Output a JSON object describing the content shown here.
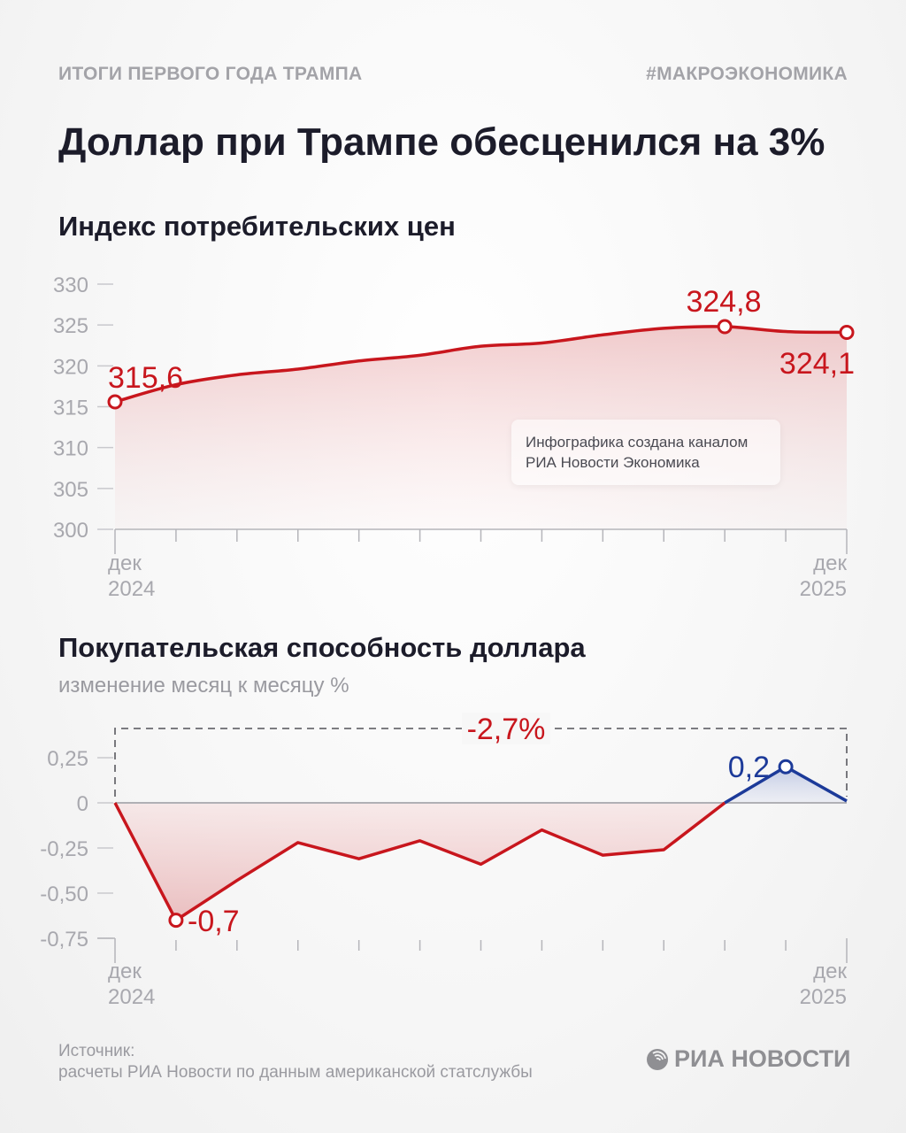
{
  "header": {
    "kicker_left": "ИТОГИ ПЕРВОГО ГОДА ТРАМПА",
    "kicker_right": "#МАКРОЭКОНОМИКА",
    "headline": "Доллар при Трампе обесценился на 3%"
  },
  "note": {
    "line1": "Инфографика создана каналом",
    "line2": "РИА Новости Экономика"
  },
  "footer": {
    "source_label": "Источник:",
    "source_text": "расчеты РИА Новости по данным американской статслужбы",
    "logo": "РИА НОВОСТИ"
  },
  "colors": {
    "red": "#c8161d",
    "blue": "#1c3a99",
    "axis": "#b5b5ba"
  },
  "chart_data": [
    {
      "type": "area",
      "title": "Индекс потребительских цен",
      "ylim": [
        300,
        330
      ],
      "yticks": [
        "300",
        "305",
        "310",
        "315",
        "320",
        "325",
        "330"
      ],
      "ytick_values": [
        300,
        305,
        310,
        315,
        320,
        325,
        330
      ],
      "x_start_label": [
        "дек",
        "2024"
      ],
      "x_end_label": [
        "дек",
        "2025"
      ],
      "values": [
        315.6,
        317.7,
        318.9,
        319.6,
        320.6,
        321.3,
        322.4,
        322.8,
        323.8,
        324.6,
        324.8,
        324.2,
        324.1
      ],
      "annotations": [
        {
          "index": 0,
          "label": "315,6"
        },
        {
          "index": 10,
          "label": "324,8"
        },
        {
          "index": 12,
          "label": "324,1"
        }
      ],
      "grid": false
    },
    {
      "type": "line",
      "title": "Покупательская способность доллара",
      "subtitle": "изменение месяц к месяцу %",
      "ylim": [
        -0.75,
        0.25
      ],
      "yticks": [
        "0,25",
        "0",
        "-0,25",
        "-0,50",
        "-0,75"
      ],
      "ytick_values": [
        0.25,
        0,
        -0.25,
        -0.5,
        -0.75
      ],
      "x_start_label": [
        "дек",
        "2024"
      ],
      "x_end_label": [
        "дек",
        "2025"
      ],
      "values": [
        0,
        -0.65,
        -0.43,
        -0.22,
        -0.31,
        -0.21,
        -0.34,
        -0.15,
        -0.29,
        -0.26,
        0,
        0.2,
        0.01
      ],
      "annotations": [
        {
          "index": 1,
          "label": "-0,7"
        },
        {
          "index": 11,
          "label": "0,2"
        }
      ],
      "total_label": "-2,7%",
      "grid": false
    }
  ]
}
